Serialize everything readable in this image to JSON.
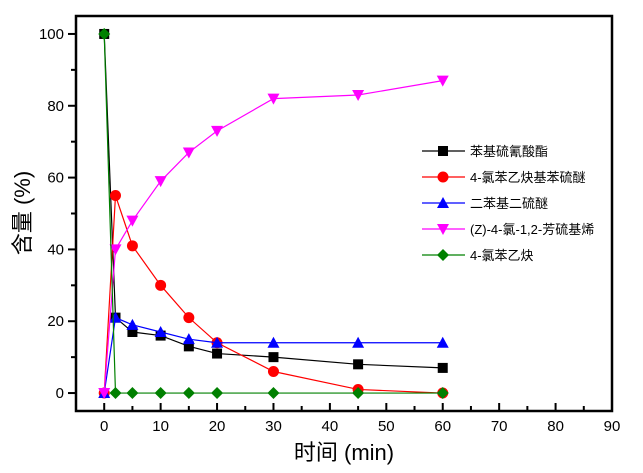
{
  "chart_data": {
    "type": "line",
    "title": "",
    "xlabel": "时间 (min)",
    "ylabel": "含量 (%)",
    "xlim": [
      -5,
      90
    ],
    "ylim": [
      -5,
      105
    ],
    "xticks": [
      "0",
      "10",
      "20",
      "30",
      "40",
      "50",
      "60",
      "70",
      "80",
      "90"
    ],
    "xtick_values": [
      0,
      10,
      20,
      30,
      40,
      50,
      60,
      70,
      80,
      90
    ],
    "yticks": [
      "0",
      "20",
      "40",
      "60",
      "80",
      "100"
    ],
    "ytick_values": [
      0,
      20,
      40,
      60,
      80,
      100
    ],
    "grid": false,
    "legend_position": "right-middle",
    "x": [
      0,
      2,
      5,
      10,
      15,
      20,
      30,
      45,
      60
    ],
    "series": [
      {
        "name": "苯基硫氰酸酯",
        "color": "#000000",
        "marker": "square",
        "values": [
          100,
          21,
          17,
          16,
          13,
          11,
          10,
          8,
          7
        ]
      },
      {
        "name": "4-氯苯乙炔基苯硫醚",
        "color": "#ff0000",
        "marker": "circle",
        "values": [
          0,
          55,
          41,
          30,
          21,
          14,
          6,
          1,
          0
        ]
      },
      {
        "name": "二苯基二硫醚",
        "color": "#0000ff",
        "marker": "triangle-up",
        "values": [
          0,
          21,
          19,
          17,
          15,
          14,
          14,
          14,
          14
        ]
      },
      {
        "name": "(Z)-4-氯-1,2-芳硫基烯",
        "color": "#ff00ff",
        "marker": "triangle-down",
        "values": [
          0,
          40,
          48,
          59,
          67,
          73,
          82,
          83,
          87
        ]
      },
      {
        "name": "4-氯苯乙炔",
        "color": "#008000",
        "marker": "diamond",
        "values": [
          100,
          0,
          0,
          0,
          0,
          0,
          0,
          0,
          0
        ]
      }
    ]
  }
}
